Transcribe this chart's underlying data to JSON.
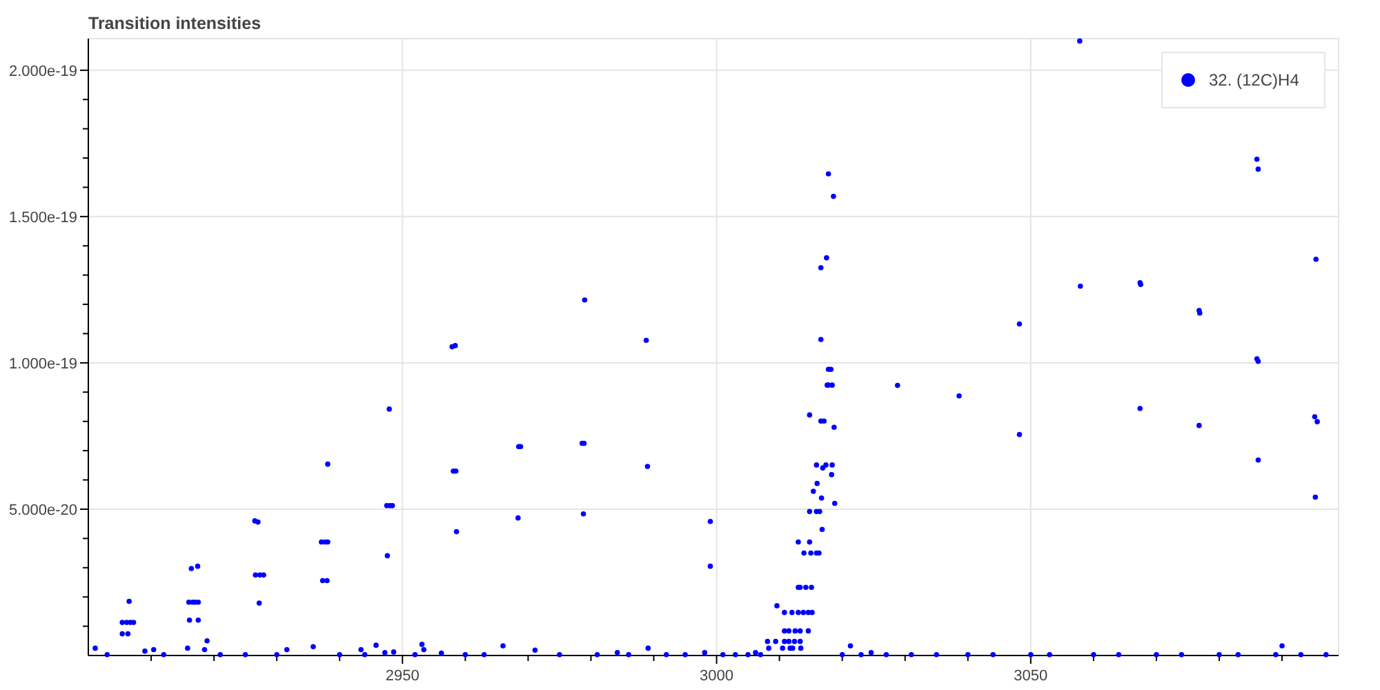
{
  "chart_data": {
    "type": "scatter",
    "title": "Transition intensities",
    "marker": "circle",
    "legend": "top right",
    "grid": true,
    "xlim": [
      2900,
      3099
    ],
    "ylim": [
      0,
      2.108e-19
    ],
    "xticks": [
      {
        "value": 2910,
        "label": null
      },
      {
        "value": 2920,
        "label": null
      },
      {
        "value": 2930,
        "label": null
      },
      {
        "value": 2940,
        "label": null
      },
      2950,
      {
        "value": 2960,
        "label": null
      },
      {
        "value": 2970,
        "label": null
      },
      {
        "value": 2980,
        "label": null
      },
      {
        "value": 2990,
        "label": null
      },
      3000,
      {
        "value": 3010,
        "label": null
      },
      {
        "value": 3020,
        "label": null
      },
      {
        "value": 3030,
        "label": null
      },
      {
        "value": 3040,
        "label": null
      },
      3050,
      {
        "value": 3060,
        "label": null
      },
      {
        "value": 3070,
        "label": null
      },
      {
        "value": 3080,
        "label": null
      },
      {
        "value": 3090,
        "label": null
      }
    ],
    "yticks": [
      {
        "value": 1e-20,
        "label": null
      },
      {
        "value": 2e-20,
        "label": null
      },
      {
        "value": 3e-20,
        "label": null
      },
      {
        "value": 4e-20,
        "label": null
      },
      {
        "value": 5e-20,
        "label": "5.000e-20"
      },
      {
        "value": 6e-20,
        "label": null
      },
      {
        "value": 7e-20,
        "label": null
      },
      {
        "value": 8e-20,
        "label": null
      },
      {
        "value": 9e-20,
        "label": null
      },
      {
        "value": 1e-19,
        "label": "1.000e-19"
      },
      {
        "value": 1.1e-19,
        "label": null
      },
      {
        "value": 1.2e-19,
        "label": null
      },
      {
        "value": 1.3e-19,
        "label": null
      },
      {
        "value": 1.4e-19,
        "label": null
      },
      {
        "value": 1.5e-19,
        "label": "1.500e-19"
      },
      {
        "value": 1.6e-19,
        "label": null
      },
      {
        "value": 1.7e-19,
        "label": null
      },
      {
        "value": 1.8e-19,
        "label": null
      },
      {
        "value": 1.9e-19,
        "label": null
      },
      {
        "value": 2e-19,
        "label": "2.000e-19"
      }
    ],
    "series": [
      {
        "name": "32. (12C)H4",
        "color": "#0000ff",
        "x": [
          2906.5,
          2905.4,
          2906.1,
          2906.7,
          2907.2,
          2905.4,
          2906.3,
          2916.4,
          2917.4,
          2916.0,
          2916.6,
          2917.0,
          2917.5,
          2916.1,
          2917.5,
          2918.9,
          2926.5,
          2927.0,
          2926.6,
          2927.3,
          2927.9,
          2927.2,
          2938.1,
          2937.1,
          2937.7,
          2938.1,
          2937.3,
          2938.0,
          2947.9,
          2947.5,
          2948.0,
          2948.4,
          2947.6,
          2901.1,
          2910.4,
          2909.0,
          2915.8,
          2918.5,
          2931.6,
          2935.8,
          2943.4,
          2945.8,
          2947.2,
          2948.6,
          2957.9,
          2958.4,
          2958.1,
          2958.5,
          2958.6,
          2968.5,
          2968.8,
          2968.4,
          2979.0,
          2978.6,
          2978.9,
          2978.8,
          2988.8,
          2989.0,
          2953.1,
          2953.4,
          2966.0,
          2971.1,
          2956.2,
          2984.2,
          2989.1,
          2999.0,
          2999.0,
          3017.8,
          3018.6,
          3017.5,
          3016.6,
          3016.6,
          3017.8,
          3018.2,
          3017.6,
          3017.8,
          3018.4,
          3014.8,
          3016.6,
          3017.1,
          3018.7,
          3015.9,
          3017.4,
          3018.4,
          3016.9,
          3018.3,
          3016.0,
          3015.4,
          3016.7,
          3018.8,
          3014.8,
          3015.9,
          3016.4,
          3016.8,
          3013.0,
          3014.8,
          3013.9,
          3015.0,
          3015.9,
          3016.3,
          3013.0,
          3013.3,
          3014.2,
          3015.1,
          3009.6,
          3010.8,
          3012.0,
          3013.0,
          3013.8,
          3014.6,
          3015.2,
          3010.8,
          3011.5,
          3012.5,
          3013.3,
          3014.6,
          3008.1,
          3009.4,
          3010.8,
          3011.5,
          3012.4,
          3013.3,
          3008.3,
          3010.5,
          3011.7,
          3012.1,
          3013.4,
          3021.3,
          2998.1,
          3006.2,
          3024.6,
          3028.8,
          3057.8,
          3086.0,
          3086.2,
          3095.4,
          3057.9,
          3067.4,
          3067.5,
          3076.8,
          3076.9,
          3048.2,
          3086.0,
          3086.2,
          3038.6,
          3067.4,
          3095.2,
          3095.6,
          3076.8,
          3048.2,
          3086.2,
          3095.3,
          3090.0,
          2903,
          2912,
          2921,
          2925,
          2930,
          2940,
          2944,
          2952,
          2960,
          2963,
          2975,
          2981,
          2986,
          2992,
          2995,
          3001,
          3003,
          3005,
          3007,
          3020,
          3023,
          3027,
          3031,
          3035,
          3040,
          3044,
          3050,
          3053,
          3060,
          3064,
          3070,
          3074,
          3080,
          3083,
          3089,
          3093,
          3097
        ],
        "values": [
          1.85e-20,
          1.13e-20,
          1.13e-20,
          1.13e-20,
          1.13e-20,
          7.4e-21,
          7.4e-21,
          2.97e-20,
          3.05e-20,
          1.82e-20,
          1.82e-20,
          1.82e-20,
          1.82e-20,
          1.21e-20,
          1.21e-20,
          5e-21,
          4.6e-20,
          4.56e-20,
          2.75e-20,
          2.75e-20,
          2.75e-20,
          1.79e-20,
          6.54e-20,
          3.88e-20,
          3.88e-20,
          3.88e-20,
          2.56e-20,
          2.56e-20,
          8.42e-20,
          5.12e-20,
          5.12e-20,
          5.12e-20,
          3.41e-20,
          2.5e-21,
          2e-21,
          1.5e-21,
          2.5e-21,
          2e-21,
          2e-21,
          3e-21,
          2e-21,
          3.5e-21,
          1e-21,
          1.2e-21,
          1.055e-19,
          1.059e-19,
          6.3e-20,
          6.3e-20,
          4.23e-20,
          7.14e-20,
          7.14e-20,
          4.7e-20,
          1.215e-19,
          7.25e-20,
          7.25e-20,
          4.84e-20,
          1.077e-19,
          6.46e-20,
          3.8e-21,
          2e-21,
          3.3e-21,
          1.8e-21,
          8e-22,
          1e-21,
          2.5e-21,
          4.58e-20,
          3.05e-20,
          1.646e-19,
          1.569e-19,
          1.359e-19,
          1.325e-19,
          1.08e-19,
          9.78e-20,
          9.78e-20,
          9.24e-20,
          9.24e-20,
          9.24e-20,
          8.22e-20,
          8.01e-20,
          8.01e-20,
          7.8e-20,
          6.51e-20,
          6.51e-20,
          6.51e-20,
          6.41e-20,
          6.18e-20,
          5.88e-20,
          5.61e-20,
          5.38e-20,
          5.2e-20,
          4.92e-20,
          4.92e-20,
          4.92e-20,
          4.31e-20,
          3.88e-20,
          3.88e-20,
          3.5e-20,
          3.5e-20,
          3.5e-20,
          3.5e-20,
          2.33e-20,
          2.33e-20,
          2.33e-20,
          2.33e-20,
          1.7e-20,
          1.47e-20,
          1.47e-20,
          1.47e-20,
          1.47e-20,
          1.47e-20,
          1.47e-20,
          8.4e-21,
          8.4e-21,
          8.4e-21,
          8.4e-21,
          8.4e-21,
          4.8e-21,
          4.8e-21,
          4.8e-21,
          4.8e-21,
          4.8e-21,
          4.8e-21,
          2.5e-21,
          2.5e-21,
          2.5e-21,
          2.5e-21,
          2.5e-21,
          3.3e-21,
          1e-21,
          1e-21,
          1e-21,
          9.23e-20,
          2.1e-19,
          1.696e-19,
          1.662e-19,
          1.354e-19,
          1.262e-19,
          1.274e-19,
          1.268e-19,
          1.179e-19,
          1.17e-19,
          1.133e-19,
          1.014e-19,
          1.005e-19,
          8.87e-20,
          8.44e-20,
          8.16e-20,
          7.99e-20,
          7.86e-20,
          7.55e-20,
          6.68e-20,
          5.41e-20,
          3.3e-21,
          3e-22,
          3e-22,
          3e-22,
          3e-22,
          3e-22,
          3e-22,
          3e-22,
          3e-22,
          3e-22,
          3e-22,
          3e-22,
          3e-22,
          3e-22,
          3e-22,
          3e-22,
          3e-22,
          3e-22,
          3e-22,
          3e-22,
          3e-22,
          3e-22,
          3e-22,
          3e-22,
          3e-22,
          3e-22,
          3e-22,
          3e-22,
          3e-22,
          3e-22,
          3e-22,
          3e-22,
          3e-22,
          3e-22,
          3e-22,
          3e-22,
          3e-22,
          3e-22
        ]
      }
    ]
  }
}
